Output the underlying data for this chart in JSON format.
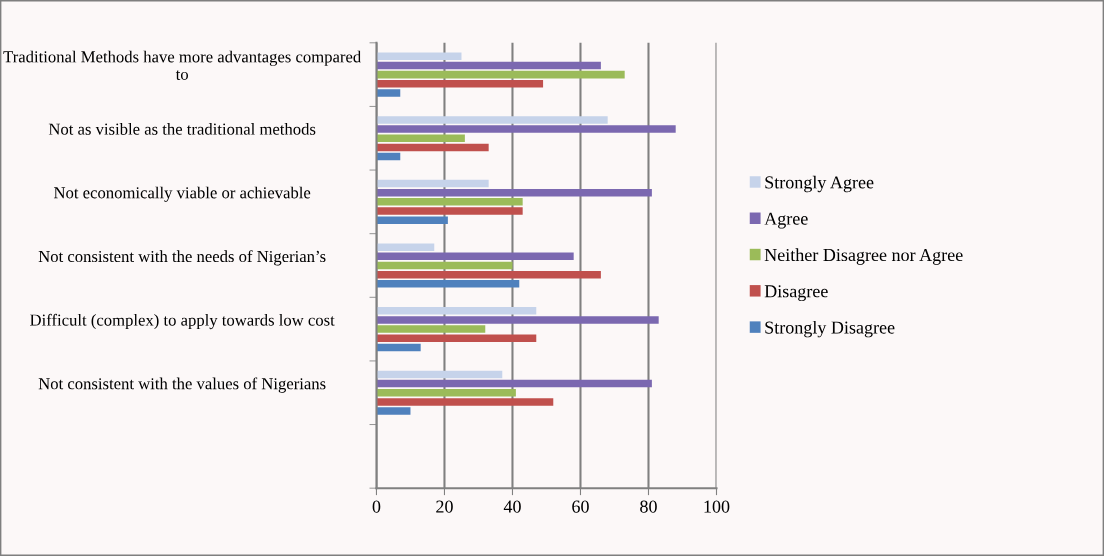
{
  "chart_data": {
    "type": "bar",
    "orientation": "horizontal",
    "categories": [
      "Traditional Methods have more advantages compared to",
      "Not as visible as the traditional methods",
      "Not economically viable or achievable",
      "Not consistent with the needs of Nigerian’s",
      "Difficult (complex) to apply towards low cost",
      "Not consistent with the values of Nigerians",
      null
    ],
    "series": [
      {
        "name": "Strongly Agree",
        "color": "#c6d3ea",
        "values": [
          25,
          68,
          33,
          17,
          47,
          37,
          null
        ]
      },
      {
        "name": "Agree",
        "color": "#7b68b0",
        "values": [
          66,
          88,
          81,
          58,
          83,
          81,
          null
        ]
      },
      {
        "name": "Neither Disagree nor Agree",
        "color": "#9bbb59",
        "values": [
          73,
          26,
          43,
          40,
          32,
          41,
          null
        ]
      },
      {
        "name": "Disagree",
        "color": "#c0504d",
        "values": [
          49,
          33,
          43,
          66,
          47,
          52,
          null
        ]
      },
      {
        "name": "Strongly Disagree",
        "color": "#4f81bd",
        "values": [
          7,
          7,
          21,
          42,
          13,
          10,
          null
        ]
      }
    ],
    "xlim": [
      0,
      100
    ],
    "xticks": [
      0,
      20,
      40,
      60,
      80,
      100
    ],
    "grid": "x",
    "legend": "right"
  }
}
